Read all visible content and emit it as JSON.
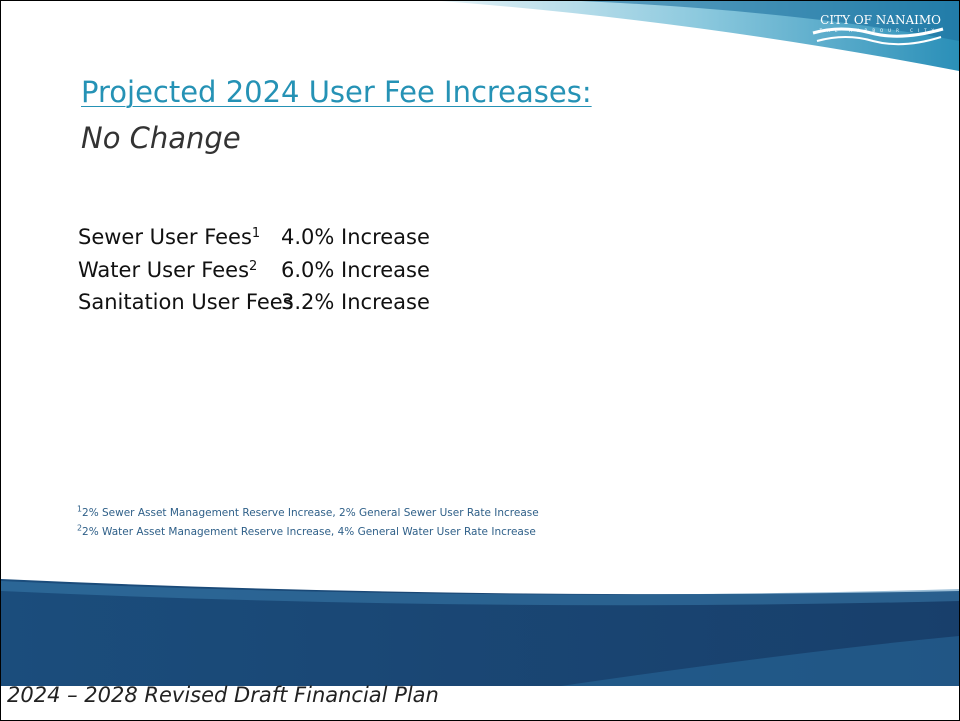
{
  "header": {
    "title": "Projected 2024 User Fee Increases:",
    "subtitle": "No Change"
  },
  "logo": {
    "name": "CITY OF NANAIMO",
    "tagline": "THE HARBOUR CITY"
  },
  "fees": [
    {
      "name": "Sewer User Fees",
      "note": "1",
      "value": "4.0% Increase"
    },
    {
      "name": "Water User Fees",
      "note": "2",
      "value": "6.0% Increase"
    },
    {
      "name": "Sanitation User Fees",
      "value": "3.2% Increase"
    }
  ],
  "footnotes": [
    {
      "marker": "1",
      "text": "2% Sewer Asset Management Reserve Increase, 2% General Sewer User Rate Increase"
    },
    {
      "marker": "2",
      "text": "2% Water Asset Management Reserve Increase, 4% General Water User Rate Increase"
    }
  ],
  "footer": "2024 – 2028 Revised Draft Financial Plan"
}
